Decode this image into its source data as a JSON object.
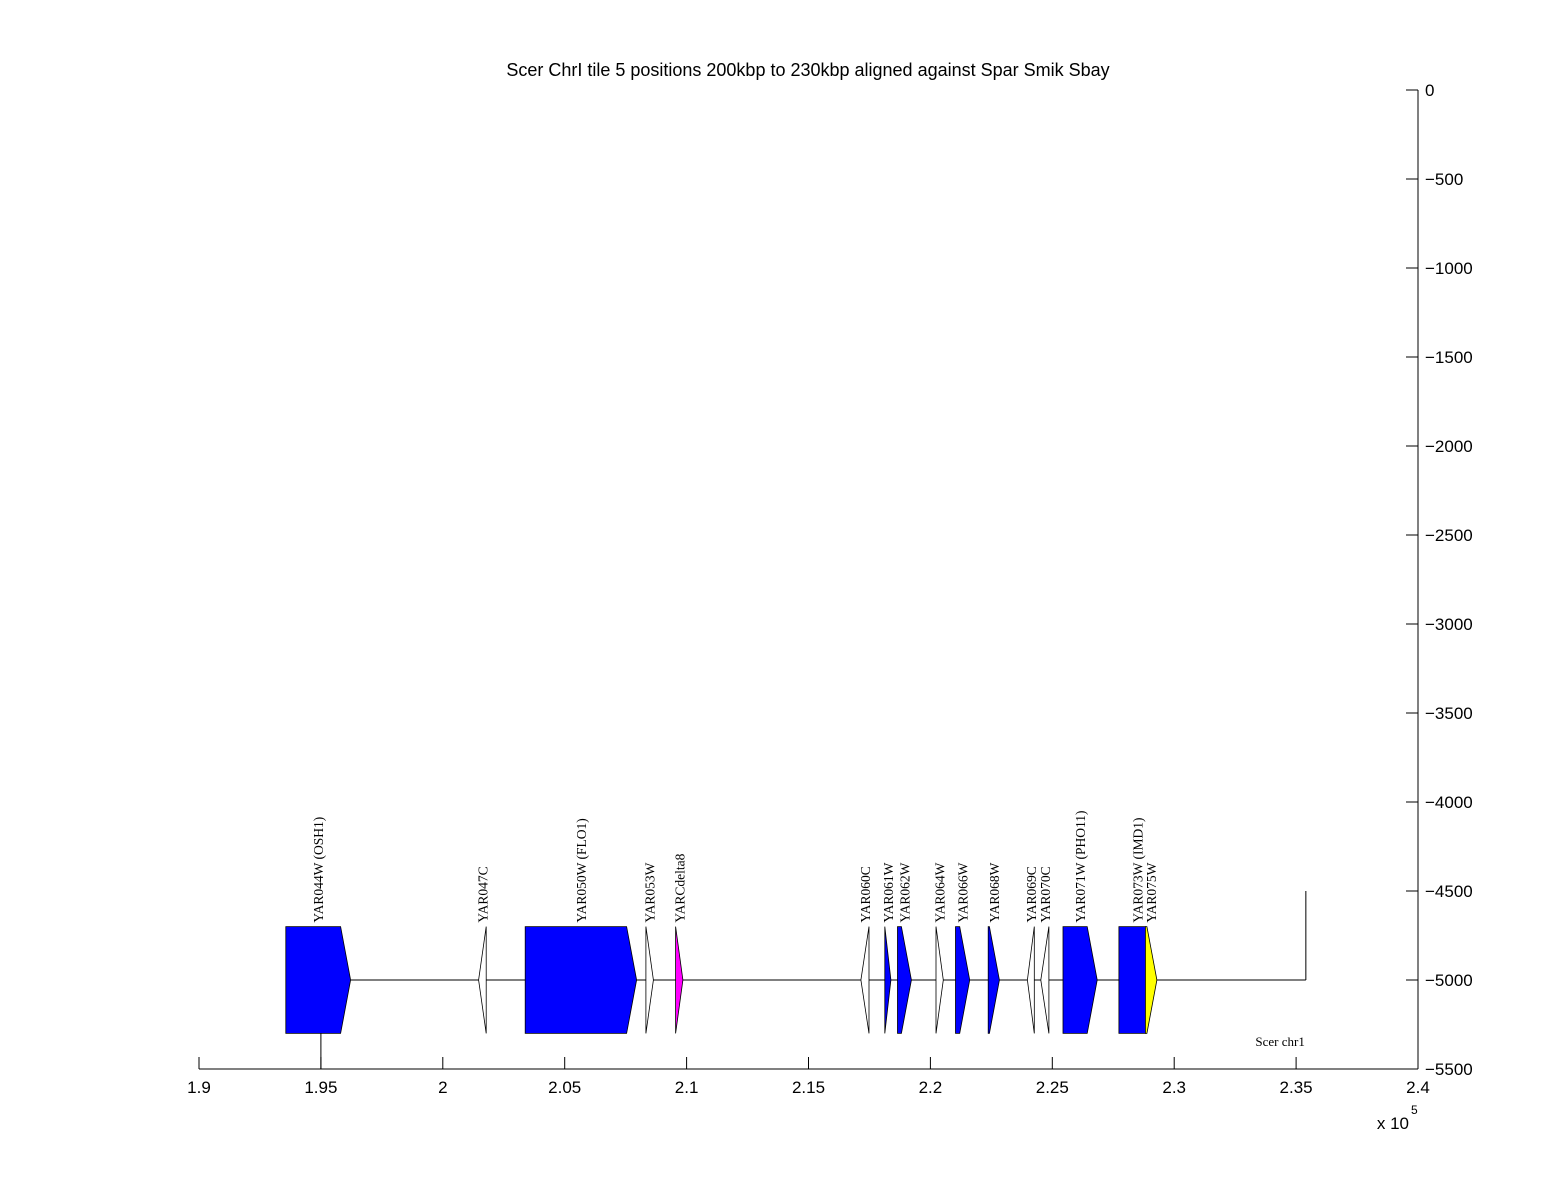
{
  "chart_data": {
    "type": "annotated-track",
    "title": "Scer ChrI tile 5 positions 200kbp to 230kbp aligned against Spar Smik Sbay",
    "xlabel": "",
    "ylabel": "",
    "x_exponent_label": "x 10",
    "x_exponent_power": "5",
    "xlim": [
      190000,
      240000
    ],
    "ylim": [
      -5500,
      0
    ],
    "x_ticks": [
      {
        "value": 190000,
        "label": "1.9"
      },
      {
        "value": 195000,
        "label": "1.95"
      },
      {
        "value": 200000,
        "label": "2"
      },
      {
        "value": 205000,
        "label": "2.05"
      },
      {
        "value": 210000,
        "label": "2.1"
      },
      {
        "value": 215000,
        "label": "2.15"
      },
      {
        "value": 220000,
        "label": "2.2"
      },
      {
        "value": 225000,
        "label": "2.25"
      },
      {
        "value": 230000,
        "label": "2.3"
      },
      {
        "value": 235000,
        "label": "2.35"
      },
      {
        "value": 240000,
        "label": "2.4"
      }
    ],
    "y_ticks": [
      {
        "value": 0,
        "label": "0"
      },
      {
        "value": -500,
        "label": "−500"
      },
      {
        "value": -1000,
        "label": "−1000"
      },
      {
        "value": -1500,
        "label": "−1500"
      },
      {
        "value": -2000,
        "label": "−2000"
      },
      {
        "value": -2500,
        "label": "−2500"
      },
      {
        "value": -3000,
        "label": "−3000"
      },
      {
        "value": -3500,
        "label": "−3500"
      },
      {
        "value": -4000,
        "label": "−4000"
      },
      {
        "value": -4500,
        "label": "−4500"
      },
      {
        "value": -5000,
        "label": "−5000"
      },
      {
        "value": -5500,
        "label": "−5500"
      }
    ],
    "track": {
      "label": "Scer chr1",
      "y": -5000,
      "x_start": 195000,
      "x_end": 235400,
      "start_marker_y_bottom": -5500,
      "end_marker_y_top": -4500
    },
    "genes": [
      {
        "name": "YAR044W (OSH1)",
        "start": 193560,
        "end": 196220,
        "strand": "W",
        "half_height": 300,
        "color": "#0000ff"
      },
      {
        "name": "YAR047C",
        "start": 201470,
        "end": 201780,
        "strand": "C",
        "half_height": 300,
        "color": "#ffffff"
      },
      {
        "name": "YAR050W (FLO1)",
        "start": 203380,
        "end": 207950,
        "strand": "W",
        "half_height": 300,
        "color": "#0000ff"
      },
      {
        "name": "YAR053W",
        "start": 208330,
        "end": 208640,
        "strand": "W",
        "half_height": 300,
        "color": "#ffffff"
      },
      {
        "name": "YARCdelta8",
        "start": 209550,
        "end": 209850,
        "strand": "W",
        "half_height": 300,
        "color": "#ff00ff"
      },
      {
        "name": "YAR060C",
        "start": 217150,
        "end": 217480,
        "strand": "C",
        "half_height": 300,
        "color": "#ffffff"
      },
      {
        "name": "YAR061W",
        "start": 218130,
        "end": 218380,
        "strand": "W",
        "half_height": 300,
        "color": "#0000ff"
      },
      {
        "name": "YAR062W",
        "start": 218650,
        "end": 219220,
        "strand": "W",
        "half_height": 300,
        "color": "#0000ff"
      },
      {
        "name": "YAR064W",
        "start": 220230,
        "end": 220530,
        "strand": "W",
        "half_height": 300,
        "color": "#ffffff"
      },
      {
        "name": "YAR066W",
        "start": 221030,
        "end": 221610,
        "strand": "W",
        "half_height": 300,
        "color": "#0000ff"
      },
      {
        "name": "YAR068W",
        "start": 222370,
        "end": 222830,
        "strand": "W",
        "half_height": 300,
        "color": "#0000ff"
      },
      {
        "name": "YAR069C",
        "start": 223980,
        "end": 224260,
        "strand": "C",
        "half_height": 300,
        "color": "#ffffff"
      },
      {
        "name": "YAR070C",
        "start": 224530,
        "end": 224860,
        "strand": "C",
        "half_height": 300,
        "color": "#ffffff"
      },
      {
        "name": "YAR071W (PHO11)",
        "start": 225440,
        "end": 226840,
        "strand": "W",
        "half_height": 300,
        "color": "#0000ff"
      },
      {
        "name": "YAR073W (IMD1)",
        "start": 227730,
        "end": 229250,
        "strand": "W",
        "half_height": 300,
        "color": "#0000ff"
      },
      {
        "name": "YAR075W",
        "start": 228820,
        "end": 229290,
        "strand": "W",
        "half_height": 300,
        "color": "#ffff00"
      }
    ]
  }
}
